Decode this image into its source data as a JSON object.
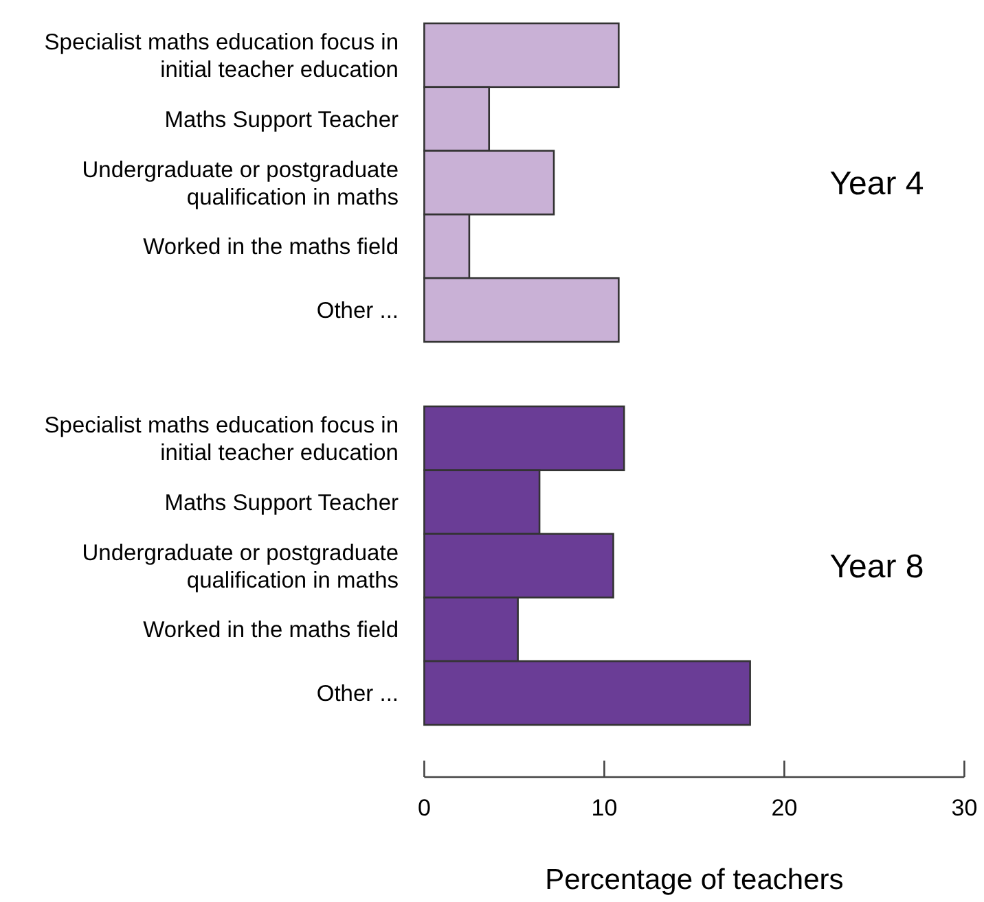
{
  "chart_data": [
    {
      "type": "bar",
      "orientation": "horizontal",
      "title": "Year 4",
      "categories": [
        "Specialist maths education focus in initial teacher education",
        "Maths Support Teacher",
        "Undergraduate or postgraduate qualification in maths",
        "Worked in the maths field",
        "Other ..."
      ],
      "values": [
        10.8,
        3.6,
        7.2,
        2.5,
        10.8
      ],
      "color": "#c9b1d6",
      "xlim": [
        0,
        30
      ],
      "tick_labels": "y"
    },
    {
      "type": "bar",
      "orientation": "horizontal",
      "title": "Year 8",
      "categories": [
        "Specialist maths education focus in initial teacher education",
        "Maths Support Teacher",
        "Undergraduate or postgraduate qualification in maths",
        "Worked in the maths field",
        "Other ..."
      ],
      "values": [
        11.1,
        6.4,
        10.5,
        5.2,
        18.1
      ],
      "color": "#6a3d96",
      "xlim": [
        0,
        30
      ],
      "xticks": [
        0,
        10,
        20,
        30
      ],
      "xlabel": "Percentage of teachers"
    }
  ]
}
